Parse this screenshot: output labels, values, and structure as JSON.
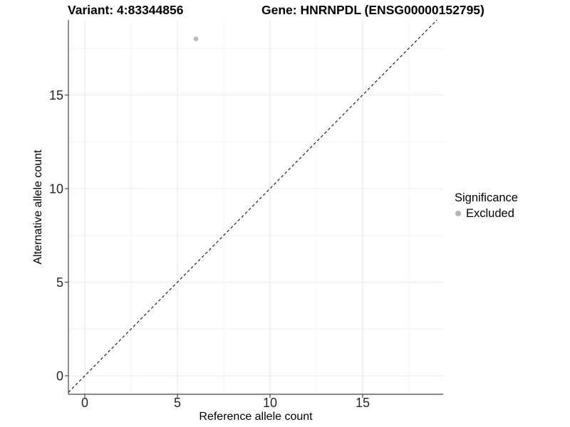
{
  "titles": {
    "variant": "Variant: 4:83344856",
    "gene": "Gene: HNRNPDL (ENSG00000152795)"
  },
  "chart_data": {
    "type": "scatter",
    "xlabel": "Reference allele count",
    "ylabel": "Alternative allele count",
    "xlim": [
      -0.885,
      19.346
    ],
    "ylim": [
      -0.989,
      19.011
    ],
    "x_ticks": [
      0,
      5,
      10,
      15
    ],
    "y_ticks": [
      0,
      5,
      10,
      15
    ],
    "x_minor_ticks": [
      2.5,
      7.5,
      12.5,
      17.5
    ],
    "y_minor_ticks": [
      2.5,
      7.5,
      12.5,
      17.5
    ],
    "grid": true,
    "points": [
      {
        "x": 6,
        "y": 18,
        "series": "Excluded"
      }
    ],
    "identity_line": {
      "type": "abline",
      "slope": 1,
      "intercept": 0,
      "style": "dashed"
    },
    "legend": {
      "title": "Significance",
      "position": "right",
      "items": [
        {
          "label": "Excluded",
          "color": "#b5b5b5"
        }
      ]
    },
    "colors": {
      "point": "#bdbdbd",
      "axis_line": "#444444",
      "tick_label": "#262626",
      "grid_major": "#e9e9e9",
      "grid_minor": "#f4f4f4",
      "dashed_line": "#111111"
    }
  }
}
